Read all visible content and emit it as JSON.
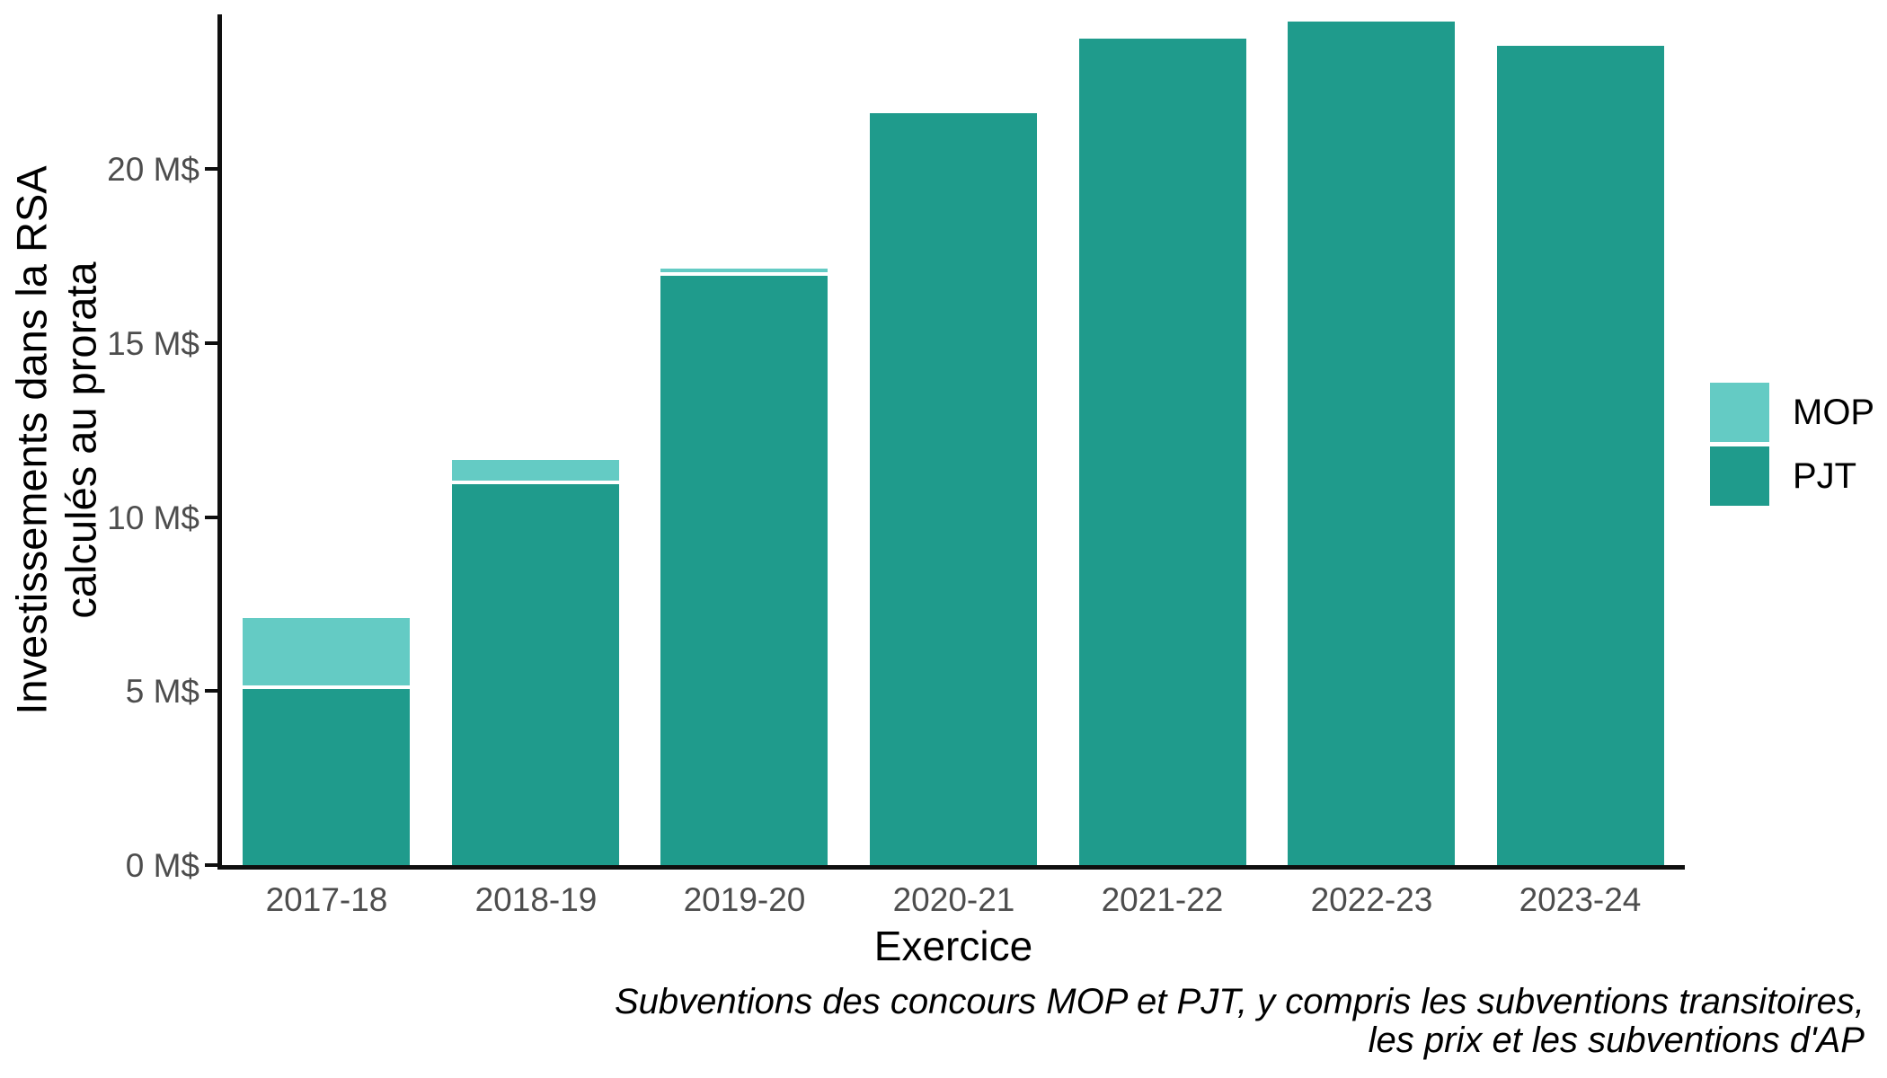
{
  "chart_data": {
    "type": "bar",
    "stacked": true,
    "title": "",
    "xlabel": "Exercice",
    "ylabel": "Investissements dans la RSA calculés au prorata",
    "ylabel_lines": [
      "Investissements dans la RSA",
      "calculés au prorata"
    ],
    "caption": "Subventions des concours MOP et PJT, y compris les subventions transitoires, les prix et les subventions d'AP",
    "categories": [
      "2017-18",
      "2018-19",
      "2019-20",
      "2020-21",
      "2021-22",
      "2022-23",
      "2023-24"
    ],
    "series": [
      {
        "name": "MOP",
        "color": "#64CBC4",
        "values": [
          1.95,
          0.6,
          0.1,
          0,
          0,
          0,
          0
        ]
      },
      {
        "name": "PJT",
        "color": "#1F9B8C",
        "values": [
          5.05,
          10.95,
          16.95,
          21.6,
          23.75,
          24.25,
          23.55
        ]
      }
    ],
    "y_ticks": [
      {
        "value": 0,
        "label": "0 M$"
      },
      {
        "value": 5,
        "label": "5 M$"
      },
      {
        "value": 10,
        "label": "10 M$"
      },
      {
        "value": 15,
        "label": "15 M$"
      },
      {
        "value": 20,
        "label": "20 M$"
      }
    ],
    "ylim": [
      0,
      24.4
    ],
    "grid": false,
    "legend_position": "right",
    "unit": "M$"
  },
  "colors": {
    "mop": "#64CBC4",
    "pjt": "#1F9B8C",
    "axis_line": "#0f0f0f",
    "tick_text": "#4d4d4d",
    "title_text": "#000000",
    "background": "#ffffff"
  }
}
